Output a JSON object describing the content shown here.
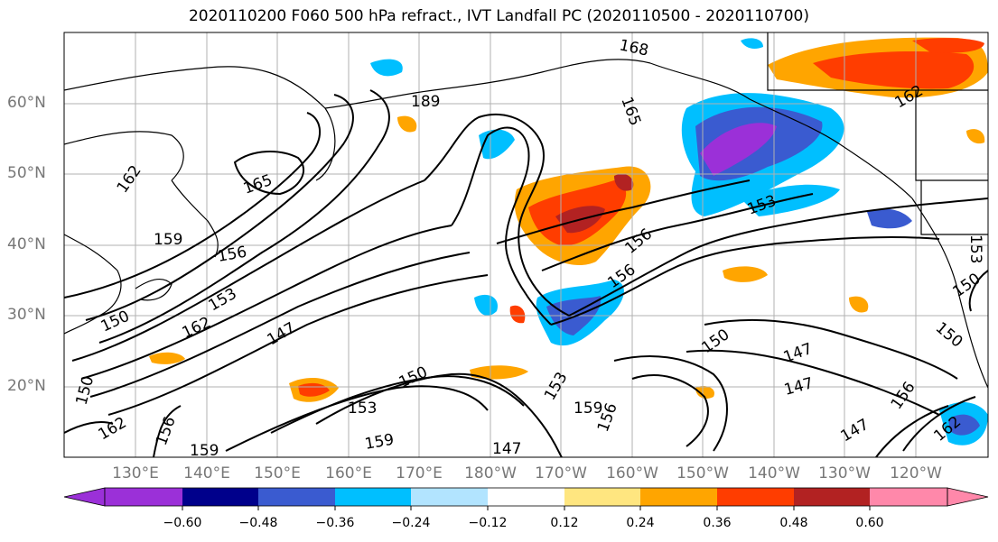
{
  "title": "2020110200 F060 500 hPa refract., IVT Landfall PC (2020110500 - 2020110700)",
  "lat_labels": [
    "60°N",
    "50°N",
    "40°N",
    "30°N",
    "20°N"
  ],
  "lon_labels": [
    "130°E",
    "140°E",
    "150°E",
    "160°E",
    "170°E",
    "180°W",
    "170°W",
    "160°W",
    "150°W",
    "140°W",
    "130°W",
    "120°W"
  ],
  "colorbar": {
    "ticks": [
      "−0.60",
      "−0.48",
      "−0.36",
      "−0.24",
      "−0.12",
      "0.12",
      "0.24",
      "0.36",
      "0.48",
      "0.60"
    ],
    "colors": [
      "#9b30d8",
      "#00008b",
      "#3a5bd0",
      "#00bfff",
      "#b2e4ff",
      "#ffffff",
      "#ffe680",
      "#ffa500",
      "#ff3d00",
      "#b22222",
      "#ff88aa"
    ]
  },
  "contour_labels": [
    "168",
    "165",
    "189",
    "162",
    "165",
    "159",
    "156",
    "153",
    "162",
    "147",
    "150",
    "153",
    "156",
    "156",
    "150",
    "147",
    "147",
    "150",
    "153",
    "159",
    "156",
    "147",
    "156",
    "162",
    "150",
    "150",
    "162",
    "159",
    "156",
    "153",
    "147",
    "162",
    "159",
    "150",
    "153"
  ]
}
